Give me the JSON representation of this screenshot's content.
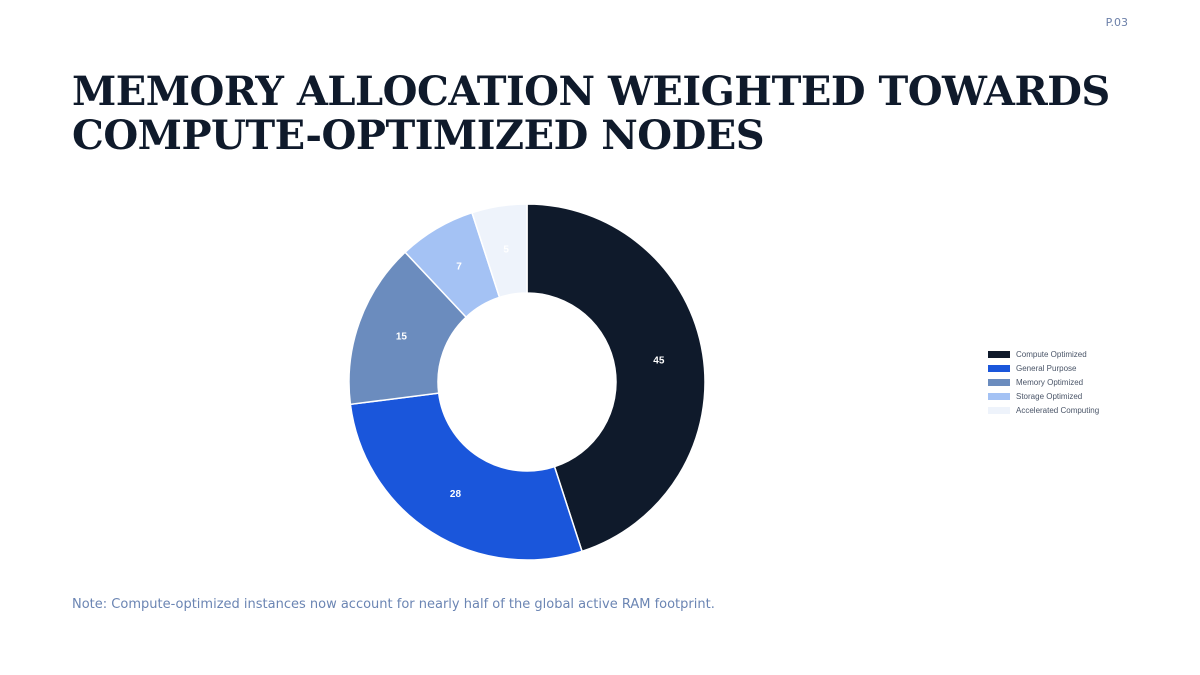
{
  "page": {
    "number": "P.03",
    "title_lines": [
      "MEMORY ALLOCATION WEIGHTED TOWARDS",
      "COMPUTE-OPTIMIZED NODES"
    ],
    "note": "Note: Compute-optimized instances now account for nearly half of the global active RAM footprint."
  },
  "chart_data": {
    "type": "pie",
    "variant": "donut",
    "categories": [
      "Compute Optimized",
      "General Purpose",
      "Memory Optimized",
      "Storage Optimized",
      "Accelerated Computing"
    ],
    "values": [
      45,
      28,
      15,
      7,
      5
    ],
    "colors": [
      "#0f1a2b",
      "#1a56db",
      "#6b8cbe",
      "#a4c2f4",
      "#eef3fb"
    ],
    "label_colors": [
      "#ffffff",
      "#ffffff",
      "#ffffff",
      "#ffffff",
      "#ffffff"
    ],
    "legend_position": "right"
  }
}
